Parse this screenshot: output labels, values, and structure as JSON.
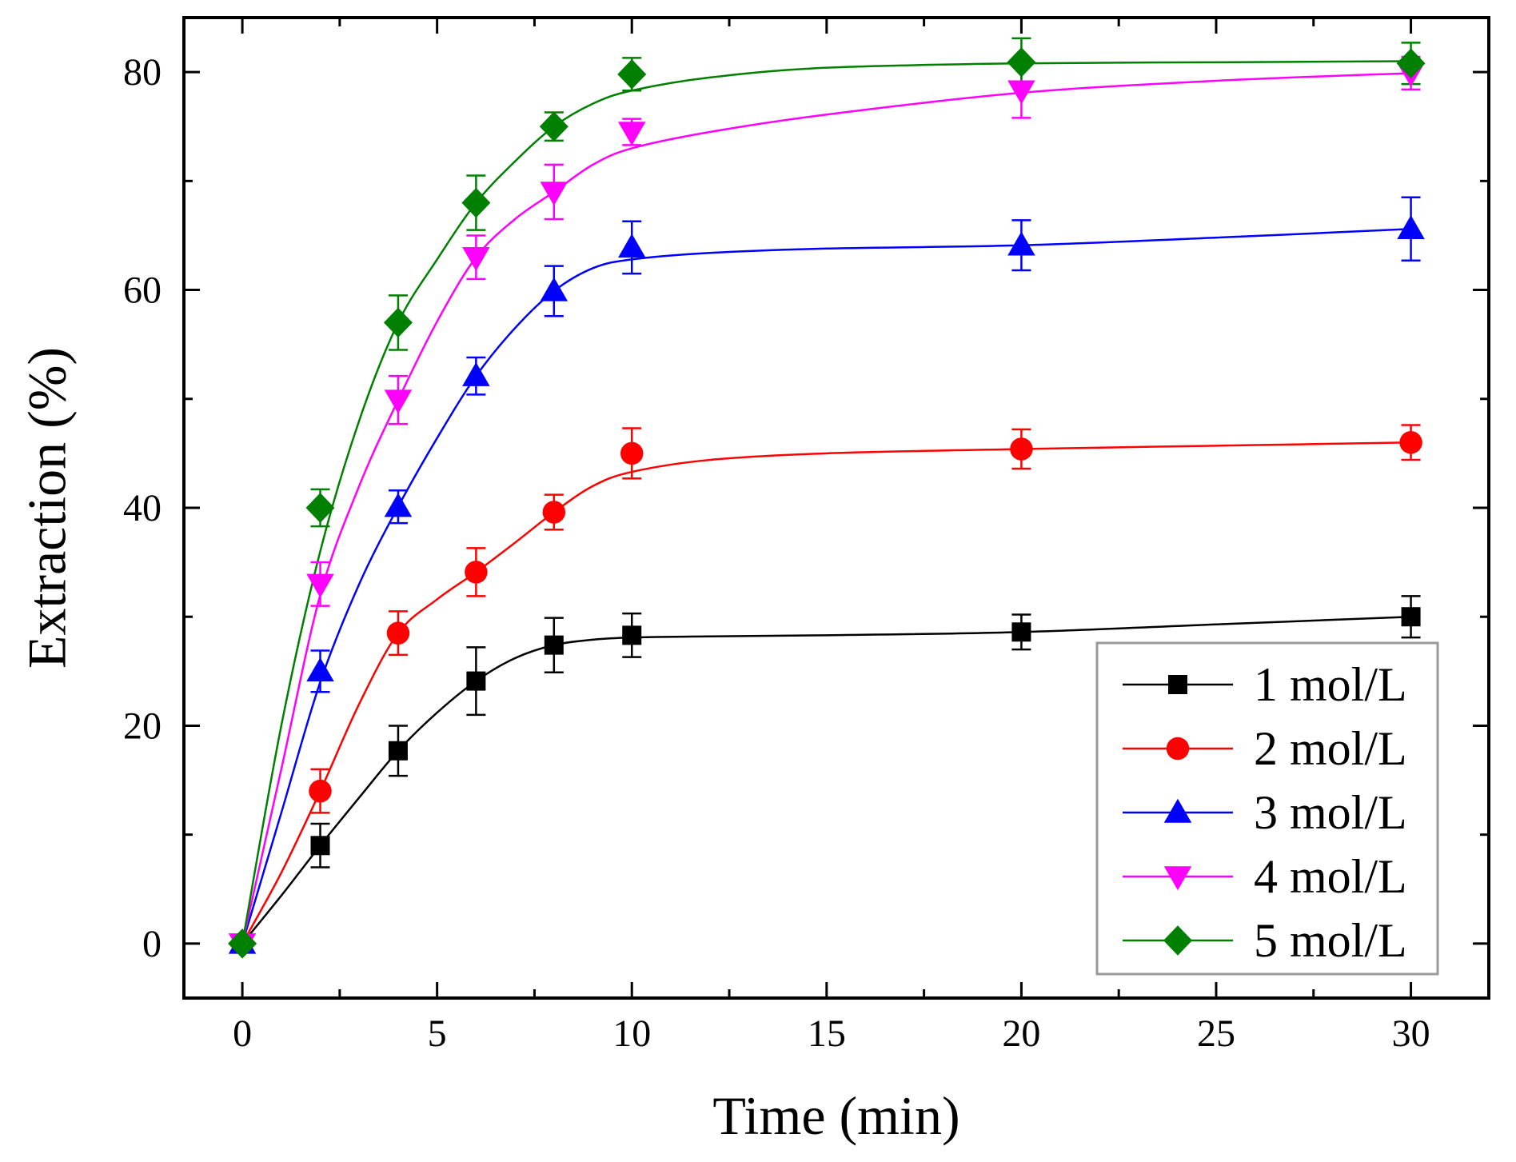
{
  "chart_data": {
    "type": "line",
    "title": "",
    "xlabel": "Time (min)",
    "ylabel": "Extraction (%)",
    "xlim": [
      -1.5,
      32
    ],
    "ylim": [
      -5,
      85
    ],
    "xticks": [
      0,
      5,
      10,
      15,
      20,
      25,
      30
    ],
    "xtick_labels": [
      "0",
      "5",
      "10",
      "15",
      "20",
      "25",
      "30"
    ],
    "xminor": [
      2.5,
      7.5,
      12.5,
      17.5,
      22.5,
      27.5
    ],
    "yticks": [
      0,
      20,
      40,
      60,
      80
    ],
    "ytick_labels": [
      "0",
      "20",
      "40",
      "60",
      "80"
    ],
    "yminor": [
      10,
      30,
      50,
      70
    ],
    "grid": false,
    "legend_position": "bottom-right",
    "x": [
      0,
      2,
      4,
      6,
      8,
      10,
      20,
      30
    ],
    "series": [
      {
        "name": "1 mol/L",
        "color": "#000000",
        "marker": "square",
        "values": [
          0,
          9,
          17.7,
          24.1,
          27.4,
          28.3,
          28.6,
          30.0
        ],
        "errors": [
          0.5,
          2.0,
          2.3,
          3.1,
          2.5,
          2.0,
          1.6,
          1.9
        ],
        "fit": [
          [
            0,
            0
          ],
          [
            1,
            4.4
          ],
          [
            2,
            9
          ],
          [
            3,
            13.4
          ],
          [
            4,
            17.7
          ],
          [
            5,
            21.2
          ],
          [
            6,
            24.1
          ],
          [
            7,
            26.2
          ],
          [
            8,
            27.4
          ],
          [
            9,
            27.9
          ],
          [
            10,
            28.1
          ],
          [
            12,
            28.2
          ],
          [
            15,
            28.3
          ],
          [
            20,
            28.6
          ],
          [
            25,
            29.3
          ],
          [
            30,
            30.0
          ]
        ]
      },
      {
        "name": "2 mol/L",
        "color": "#ff0000",
        "marker": "circle",
        "values": [
          0,
          14,
          28.5,
          34.1,
          39.6,
          45.0,
          45.4,
          46.0
        ],
        "errors": [
          0.5,
          2.0,
          2.0,
          2.2,
          1.6,
          2.3,
          1.8,
          1.6
        ],
        "fit": [
          [
            0,
            0
          ],
          [
            1,
            6.5
          ],
          [
            2,
            14
          ],
          [
            3,
            22
          ],
          [
            4,
            28.5
          ],
          [
            5,
            31.6
          ],
          [
            6,
            34.1
          ],
          [
            7,
            36.8
          ],
          [
            8,
            39.6
          ],
          [
            9,
            42.0
          ],
          [
            10,
            43.3
          ],
          [
            12,
            44.4
          ],
          [
            15,
            45.0
          ],
          [
            20,
            45.4
          ],
          [
            25,
            45.7
          ],
          [
            30,
            46.0
          ]
        ]
      },
      {
        "name": "3 mol/L",
        "color": "#0000ff",
        "marker": "triangle-up",
        "values": [
          0,
          25,
          40.1,
          52.1,
          59.9,
          63.9,
          64.1,
          65.6
        ],
        "errors": [
          0.5,
          1.9,
          1.5,
          1.7,
          2.3,
          2.4,
          2.3,
          2.9
        ],
        "fit": [
          [
            0,
            0
          ],
          [
            1,
            12
          ],
          [
            2,
            24
          ],
          [
            3,
            33
          ],
          [
            4,
            40.1
          ],
          [
            5,
            46.4
          ],
          [
            6,
            52.1
          ],
          [
            7,
            56.5
          ],
          [
            8,
            59.9
          ],
          [
            9,
            62.0
          ],
          [
            10,
            62.8
          ],
          [
            12,
            63.4
          ],
          [
            15,
            63.8
          ],
          [
            20,
            64.1
          ],
          [
            25,
            64.8
          ],
          [
            30,
            65.6
          ]
        ]
      },
      {
        "name": "4 mol/L",
        "color": "#ff00ff",
        "marker": "triangle-down",
        "values": [
          0,
          33,
          49.9,
          63.0,
          69.0,
          74.5,
          78.3,
          79.9
        ],
        "errors": [
          0.5,
          2.0,
          2.2,
          2.0,
          2.5,
          1.2,
          2.5,
          1.5
        ],
        "fit": [
          [
            0,
            0
          ],
          [
            1,
            16
          ],
          [
            2,
            32
          ],
          [
            3,
            42
          ],
          [
            4,
            49.9
          ],
          [
            5,
            57.1
          ],
          [
            6,
            63.0
          ],
          [
            7,
            66.5
          ],
          [
            8,
            69.0
          ],
          [
            9,
            71.5
          ],
          [
            10,
            73.0
          ],
          [
            12,
            74.5
          ],
          [
            15,
            76.1
          ],
          [
            20,
            78.1
          ],
          [
            25,
            79.2
          ],
          [
            30,
            79.9
          ]
        ]
      },
      {
        "name": "5 mol/L",
        "color": "#008000",
        "marker": "diamond",
        "values": [
          0,
          40,
          57.0,
          68.0,
          75.0,
          79.8,
          80.9,
          80.8
        ],
        "errors": [
          0.5,
          1.7,
          2.5,
          2.5,
          1.3,
          1.5,
          2.2,
          1.9
        ],
        "fit": [
          [
            0,
            0
          ],
          [
            1,
            20
          ],
          [
            2,
            36
          ],
          [
            3,
            48
          ],
          [
            4,
            57.0
          ],
          [
            5,
            62.8
          ],
          [
            6,
            68.0
          ],
          [
            7,
            71.8
          ],
          [
            8,
            75.0
          ],
          [
            9,
            77.1
          ],
          [
            10,
            78.3
          ],
          [
            12,
            79.5
          ],
          [
            15,
            80.4
          ],
          [
            20,
            80.8
          ],
          [
            25,
            80.9
          ],
          [
            30,
            81.0
          ]
        ]
      }
    ]
  }
}
